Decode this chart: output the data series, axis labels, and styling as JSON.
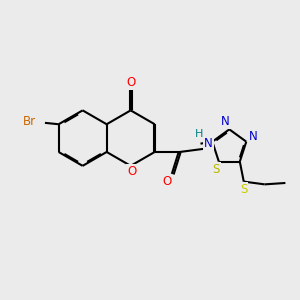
{
  "bg_color": "#ebebeb",
  "bond_color": "#000000",
  "bond_width": 1.5,
  "dbo": 0.012,
  "atom_colors": {
    "O": "#ff0000",
    "N": "#0000cc",
    "S_ring": "#b8b800",
    "S_et": "#cccc00",
    "Br": "#cc6600",
    "H": "#008080",
    "C": "#000000"
  },
  "font_size": 8.5,
  "figsize": [
    3.0,
    3.0
  ],
  "dpi": 100
}
